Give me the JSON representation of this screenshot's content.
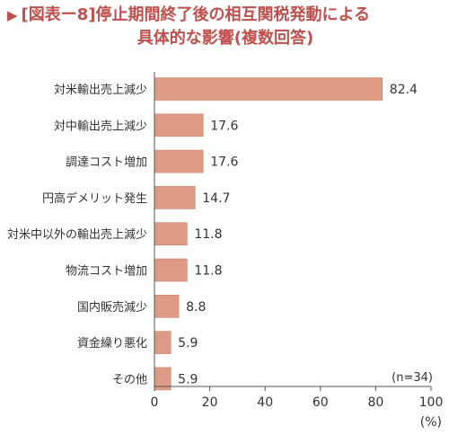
{
  "title": {
    "line1": "[図表ー8]停止期間終了後の相互関税発動による",
    "line2": "具体的な影響(複数回答)"
  },
  "chart_data": {
    "type": "bar",
    "orientation": "horizontal",
    "categories": [
      "対米輸出売上減少",
      "対中輸出売上減少",
      "調達コスト増加",
      "円高デメリット発生",
      "対米中以外の輸出売上減少",
      "物流コスト増加",
      "国内販売減少",
      "資金繰り悪化",
      "その他"
    ],
    "values": [
      82.4,
      17.6,
      17.6,
      14.7,
      11.8,
      11.8,
      8.8,
      5.9,
      5.9
    ],
    "value_labels": [
      "82.4",
      "17.6",
      "17.6",
      "14.7",
      "11.8",
      "11.8",
      "8.8",
      "5.9",
      "5.9"
    ],
    "xlim": [
      0,
      100
    ],
    "xticks": [
      "0",
      "20",
      "40",
      "60",
      "80",
      "100"
    ],
    "xunit": "(%)",
    "note": "(n=34)",
    "bar_color": "#dd9b85",
    "bar_edge_color": "#c9826c",
    "grid": false
  }
}
